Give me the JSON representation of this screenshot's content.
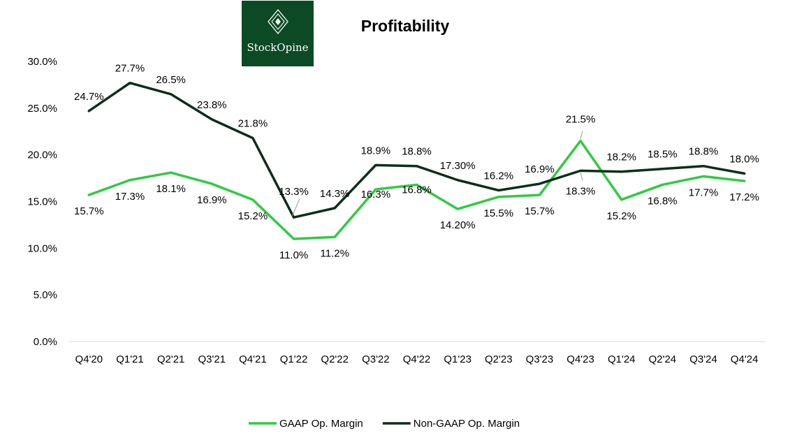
{
  "brand": {
    "name": "StockOpine"
  },
  "colors": {
    "gaap": "#2ecc40",
    "nongaap": "#0b2f1a",
    "logo_bg": "#0b4a24",
    "axis": "#d9d9d9"
  },
  "chart_data": {
    "type": "line",
    "title": "Profitability",
    "xlabel": "",
    "ylabel": "",
    "categories": [
      "Q4'20",
      "Q1'21",
      "Q2'21",
      "Q3'21",
      "Q4'21",
      "Q1'22",
      "Q2'22",
      "Q3'22",
      "Q4'22",
      "Q1'23",
      "Q2'23",
      "Q3'23",
      "Q4'23",
      "Q1'24",
      "Q2'24",
      "Q3'24",
      "Q4'24"
    ],
    "ylim": [
      0,
      30
    ],
    "yticks": [
      "0.0%",
      "5.0%",
      "10.0%",
      "15.0%",
      "20.0%",
      "25.0%",
      "30.0%"
    ],
    "ytick_values": [
      0,
      5,
      10,
      15,
      20,
      25,
      30
    ],
    "series": [
      {
        "name": "GAAP Op. Margin",
        "values": [
          15.7,
          17.3,
          18.1,
          16.9,
          15.2,
          11.0,
          11.2,
          16.3,
          16.8,
          14.2,
          15.5,
          15.7,
          21.5,
          15.2,
          16.8,
          17.7,
          17.2
        ],
        "labels": [
          "15.7%",
          "17.3%",
          "18.1%",
          "16.9%",
          "15.2%",
          "11.0%",
          "11.2%",
          "16.3%",
          "16.8%",
          "14.20%",
          "15.5%",
          "15.7%",
          "21.5%",
          "15.2%",
          "16.8%",
          "17.7%",
          "17.2%"
        ]
      },
      {
        "name": "Non-GAAP Op. Margin",
        "values": [
          24.7,
          27.7,
          26.5,
          23.8,
          21.8,
          13.3,
          14.3,
          18.9,
          18.8,
          17.3,
          16.2,
          16.9,
          18.3,
          18.2,
          18.5,
          18.8,
          18.0
        ],
        "labels": [
          "24.7%",
          "27.7%",
          "26.5%",
          "23.8%",
          "21.8%",
          "13.3%",
          "14.3%",
          "18.9%",
          "18.8%",
          "17.30%",
          "16.2%",
          "16.9%",
          "18.3%",
          "18.2%",
          "18.5%",
          "18.8%",
          "18.0%"
        ]
      }
    ],
    "legend": "bottom-center"
  }
}
